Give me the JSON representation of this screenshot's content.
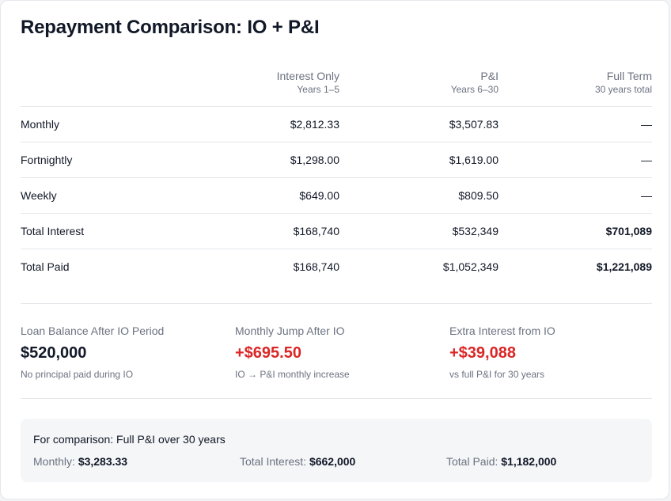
{
  "title": "Repayment Comparison: IO + P&I",
  "table": {
    "columns": [
      {
        "label": "",
        "sub": ""
      },
      {
        "label": "Interest Only",
        "sub": "Years 1–5"
      },
      {
        "label": "P&I",
        "sub": "Years 6–30"
      },
      {
        "label": "Full Term",
        "sub": "30 years total"
      }
    ],
    "rows": [
      {
        "label": "Monthly",
        "io": "$2,812.33",
        "pi": "$3,507.83",
        "full": "—"
      },
      {
        "label": "Fortnightly",
        "io": "$1,298.00",
        "pi": "$1,619.00",
        "full": "—"
      },
      {
        "label": "Weekly",
        "io": "$649.00",
        "pi": "$809.50",
        "full": "—"
      },
      {
        "label": "Total Interest",
        "io": "$168,740",
        "pi": "$532,349",
        "full": "$701,089"
      },
      {
        "label": "Total Paid",
        "io": "$168,740",
        "pi": "$1,052,349",
        "full": "$1,221,089"
      }
    ]
  },
  "stats": [
    {
      "label": "Loan Balance After IO Period",
      "value": "$520,000",
      "note": "No principal paid during IO"
    },
    {
      "label": "Monthly Jump After IO",
      "value": "+$695.50",
      "note": "IO → P&I monthly increase"
    },
    {
      "label": "Extra Interest from IO",
      "value": "+$39,088",
      "note": "vs full P&I for 30 years"
    }
  ],
  "comparison": {
    "title": "For comparison: Full P&I over 30 years",
    "items": [
      {
        "label": "Monthly:",
        "value": "$3,283.33"
      },
      {
        "label": "Total Interest:",
        "value": "$662,000"
      },
      {
        "label": "Total Paid:",
        "value": "$1,182,000"
      }
    ]
  },
  "colors": {
    "negative": "#dc2626",
    "muted": "#6b7280",
    "text": "#111827"
  }
}
